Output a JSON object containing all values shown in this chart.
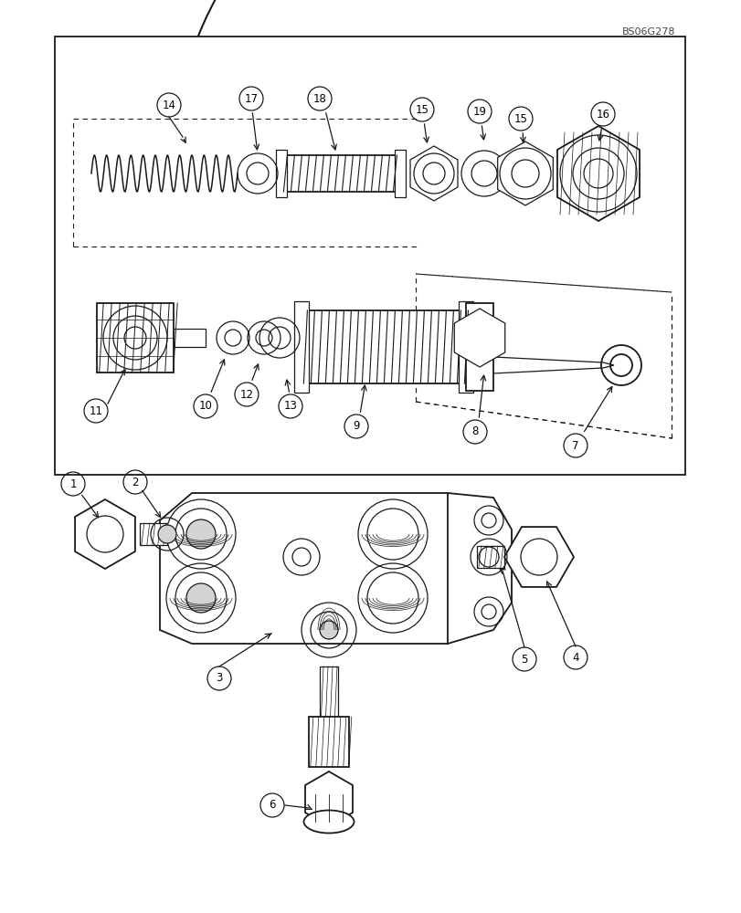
{
  "bg_color": "#ffffff",
  "line_color": "#1a1a1a",
  "figure_width": 8.12,
  "figure_height": 10.0,
  "watermark": "BS06G278",
  "dpi": 100,
  "ax_aspect": "auto",
  "xlim": [
    0,
    812
  ],
  "ylim": [
    0,
    1000
  ]
}
